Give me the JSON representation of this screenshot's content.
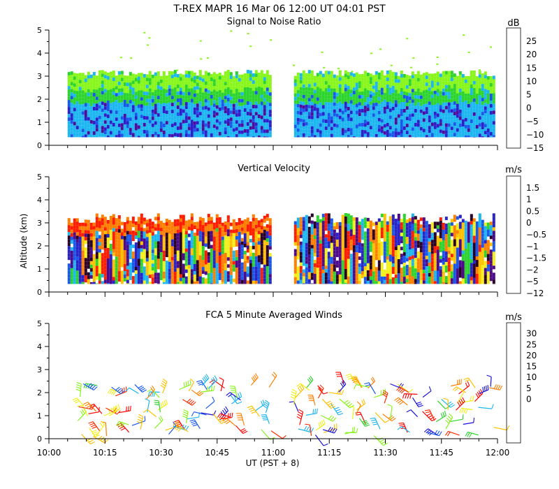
{
  "header": {
    "title": "T-REX   MAPR 16 Mar 06   12:00 UT  04:01  PST"
  },
  "axes": {
    "y_label": "Altitude (km)",
    "x_label": "UT  (PST + 8)",
    "x_ticks": [
      "10:00",
      "10:15",
      "10:30",
      "10:45",
      "11:00",
      "11:15",
      "11:30",
      "11:45",
      "12:00"
    ],
    "y_ticks": [
      "0",
      "1",
      "2",
      "3",
      "4",
      "5"
    ]
  },
  "colors": {
    "snr": [
      "#88f61a",
      "#2dd42d",
      "#1cb6f0",
      "#1858ec",
      "#2d1fcb",
      "#4f0c9a",
      "#ff2a00",
      "#ff7f00",
      "#ffc100"
    ],
    "vel": [
      "#2a0028",
      "#4d0a8a",
      "#2a24c8",
      "#1858ec",
      "#1cb6f0",
      "#2dd42d",
      "#f3f019",
      "#ffc100",
      "#ff7f00",
      "#ff1c00"
    ],
    "wind": [
      "#3a0f6a",
      "#1810d8",
      "#1858ec",
      "#1cb6f0",
      "#2dd42d",
      "#88f61a",
      "#f3f019",
      "#ffc100",
      "#ff7f00",
      "#ff2a00",
      "#ff0000"
    ]
  },
  "chart_data": [
    {
      "type": "heatmap",
      "title": "Signal to Noise Ratio",
      "units": "dB",
      "x_range": [
        "10:00",
        "12:00"
      ],
      "ylim": [
        0,
        5
      ],
      "colorbar_ticks": [
        "25",
        "20",
        "15",
        "10",
        "5",
        "0",
        "−5",
        "−10",
        "−15"
      ],
      "data_gap": [
        "11:00",
        "11:05"
      ],
      "top_of_data_km": 3.0,
      "bottom_of_data_km": 0.35
    },
    {
      "type": "heatmap",
      "title": "Vertical Velocity",
      "units": "m/s",
      "x_range": [
        "10:00",
        "12:00"
      ],
      "ylim": [
        0,
        5
      ],
      "colorbar_ticks": [
        "1.5",
        "1",
        "0.5",
        "0",
        "−0.5",
        "−1",
        "−1.5",
        "−2",
        "−5",
        "−12"
      ],
      "data_gap": [
        "11:00",
        "11:05"
      ],
      "top_of_data_km": 3.0,
      "bottom_of_data_km": 0.35
    },
    {
      "type": "scatter",
      "title": "FCA 5 Minute Averaged Winds",
      "units": "m/s",
      "x_range": [
        "10:00",
        "12:00"
      ],
      "ylim": [
        0,
        5
      ],
      "colorbar_ticks": [
        "30",
        "25",
        "20",
        "15",
        "10",
        "5",
        "0"
      ],
      "data_gap": [
        "11:00",
        "11:05"
      ]
    }
  ]
}
